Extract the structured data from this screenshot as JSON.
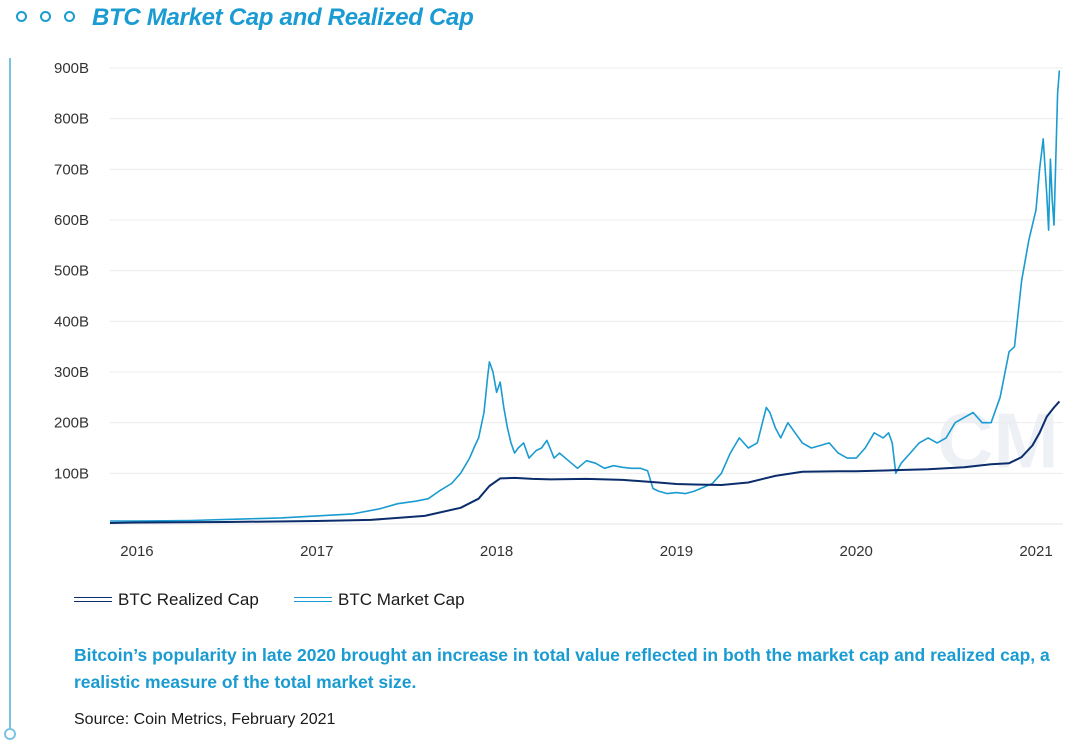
{
  "page": {
    "title": "BTC Market Cap and Realized Cap",
    "caption": "Bitcoin’s popularity in late 2020 brought an increase in total value reflected in both the market cap and realized cap, a realistic measure of the total market size.",
    "source": "Source: Coin Metrics, February 2021",
    "accent_color": "#1a9bd1",
    "watermark_icon": "coin-metrics-watermark"
  },
  "chart_data": {
    "type": "line",
    "title": "BTC Market Cap and Realized Cap",
    "xlabel": "",
    "ylabel": "",
    "xlim": [
      2015.85,
      2021.15
    ],
    "ylim": [
      0,
      900
    ],
    "yunit": "B",
    "y_ticks": [
      {
        "value": 100,
        "label": "100B"
      },
      {
        "value": 200,
        "label": "200B"
      },
      {
        "value": 300,
        "label": "300B"
      },
      {
        "value": 400,
        "label": "400B"
      },
      {
        "value": 500,
        "label": "500B"
      },
      {
        "value": 600,
        "label": "600B"
      },
      {
        "value": 700,
        "label": "700B"
      },
      {
        "value": 800,
        "label": "800B"
      },
      {
        "value": 900,
        "label": "900B"
      }
    ],
    "x_ticks": [
      {
        "value": 2016,
        "label": "2016"
      },
      {
        "value": 2017,
        "label": "2017"
      },
      {
        "value": 2018,
        "label": "2018"
      },
      {
        "value": 2019,
        "label": "2019"
      },
      {
        "value": 2020,
        "label": "2020"
      },
      {
        "value": 2021,
        "label": "2021"
      }
    ],
    "grid": true,
    "legend_position": "bottom-left",
    "series": [
      {
        "name": "BTC Realized Cap",
        "color": "#0b2d6b",
        "x": [
          2015.85,
          2016.0,
          2016.5,
          2017.0,
          2017.3,
          2017.6,
          2017.8,
          2017.9,
          2017.96,
          2018.02,
          2018.1,
          2018.2,
          2018.3,
          2018.5,
          2018.7,
          2018.9,
          2019.0,
          2019.1,
          2019.25,
          2019.4,
          2019.55,
          2019.7,
          2019.9,
          2020.0,
          2020.2,
          2020.4,
          2020.6,
          2020.75,
          2020.85,
          2020.92,
          2020.98,
          2021.02,
          2021.06,
          2021.1,
          2021.13
        ],
        "values": [
          2,
          3,
          4,
          6,
          8,
          16,
          32,
          50,
          75,
          90,
          91,
          89,
          88,
          89,
          87,
          82,
          79,
          78,
          77,
          82,
          95,
          103,
          104,
          104,
          106,
          108,
          112,
          118,
          120,
          132,
          155,
          180,
          212,
          230,
          242
        ]
      },
      {
        "name": "BTC Market Cap",
        "color": "#1a9bd1",
        "x": [
          2015.85,
          2016.0,
          2016.3,
          2016.5,
          2016.6,
          2016.8,
          2017.0,
          2017.1,
          2017.2,
          2017.35,
          2017.45,
          2017.55,
          2017.62,
          2017.68,
          2017.75,
          2017.8,
          2017.85,
          2017.88,
          2017.9,
          2017.93,
          2017.95,
          2017.96,
          2017.98,
          2018.0,
          2018.02,
          2018.04,
          2018.06,
          2018.08,
          2018.1,
          2018.12,
          2018.15,
          2018.18,
          2018.22,
          2018.25,
          2018.28,
          2018.32,
          2018.35,
          2018.4,
          2018.45,
          2018.5,
          2018.55,
          2018.6,
          2018.65,
          2018.7,
          2018.75,
          2018.8,
          2018.84,
          2018.87,
          2018.9,
          2018.95,
          2019.0,
          2019.05,
          2019.1,
          2019.2,
          2019.25,
          2019.3,
          2019.35,
          2019.4,
          2019.45,
          2019.5,
          2019.52,
          2019.55,
          2019.58,
          2019.62,
          2019.66,
          2019.7,
          2019.75,
          2019.8,
          2019.85,
          2019.9,
          2019.95,
          2020.0,
          2020.05,
          2020.1,
          2020.15,
          2020.18,
          2020.2,
          2020.22,
          2020.25,
          2020.3,
          2020.35,
          2020.4,
          2020.45,
          2020.5,
          2020.55,
          2020.6,
          2020.65,
          2020.7,
          2020.75,
          2020.8,
          2020.85,
          2020.88,
          2020.92,
          2020.96,
          2021.0,
          2021.02,
          2021.04,
          2021.06,
          2021.07,
          2021.08,
          2021.09,
          2021.1,
          2021.11,
          2021.12,
          2021.13
        ],
        "values": [
          6,
          6,
          7,
          9,
          10,
          12,
          16,
          18,
          20,
          30,
          40,
          45,
          50,
          65,
          80,
          100,
          130,
          155,
          170,
          220,
          290,
          320,
          300,
          260,
          280,
          230,
          190,
          160,
          140,
          150,
          160,
          130,
          145,
          150,
          165,
          130,
          140,
          125,
          110,
          125,
          120,
          110,
          115,
          112,
          110,
          110,
          105,
          70,
          65,
          60,
          62,
          60,
          65,
          80,
          100,
          140,
          170,
          150,
          160,
          230,
          220,
          190,
          170,
          200,
          180,
          160,
          150,
          155,
          160,
          140,
          130,
          130,
          150,
          180,
          170,
          180,
          160,
          100,
          120,
          140,
          160,
          170,
          160,
          170,
          200,
          210,
          220,
          200,
          200,
          250,
          340,
          350,
          480,
          560,
          620,
          700,
          760,
          650,
          580,
          720,
          640,
          590,
          720,
          850,
          895
        ]
      }
    ]
  }
}
